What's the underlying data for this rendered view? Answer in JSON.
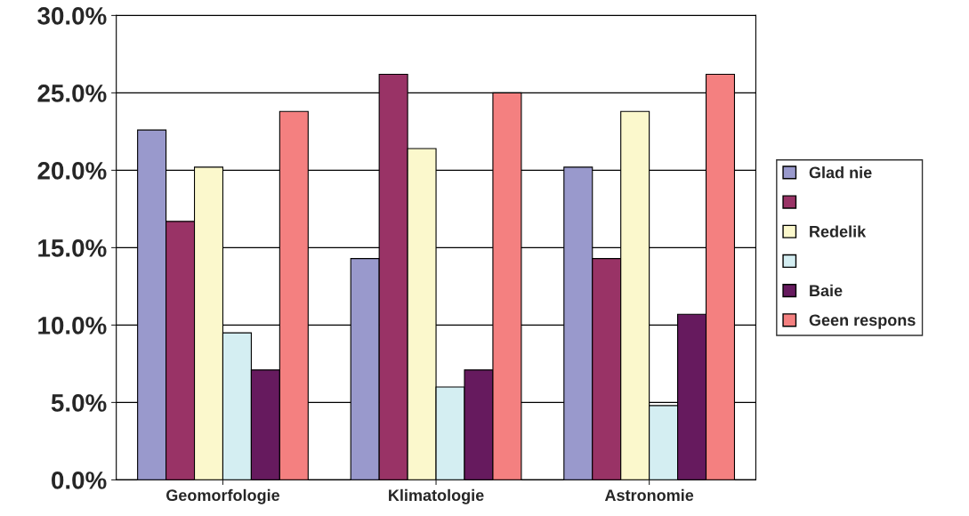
{
  "chart_data": {
    "type": "bar",
    "categories": [
      "Geomorfologie",
      "Klimatologie",
      "Astronomie"
    ],
    "series": [
      {
        "name": "Glad nie",
        "color": "#9999cc",
        "values": [
          22.6,
          14.3,
          20.2
        ]
      },
      {
        "color": "#993366",
        "values": [
          16.7,
          26.2,
          14.3
        ]
      },
      {
        "name": "Redelik",
        "color": "#fbf8cc",
        "values": [
          20.2,
          21.4,
          23.8
        ]
      },
      {
        "color": "#d4eef2",
        "values": [
          9.5,
          6.0,
          4.8
        ]
      },
      {
        "name": "Baie",
        "color": "#661a5e",
        "values": [
          7.1,
          7.1,
          10.7
        ]
      },
      {
        "name": "Geen respons",
        "color": "#f48080",
        "values": [
          23.8,
          25.0,
          26.2
        ]
      }
    ],
    "ylim": [
      0,
      30
    ],
    "yticks": [
      {
        "value": 0,
        "label": "0.0%"
      },
      {
        "value": 5,
        "label": "5.0%"
      },
      {
        "value": 10,
        "label": "10.0%"
      },
      {
        "value": 15,
        "label": "15.0%"
      },
      {
        "value": 20,
        "label": "20.0%"
      },
      {
        "value": 25,
        "label": "25.0%"
      },
      {
        "value": 30,
        "label": "30.0%"
      }
    ],
    "grid": "y",
    "legend": "right"
  }
}
